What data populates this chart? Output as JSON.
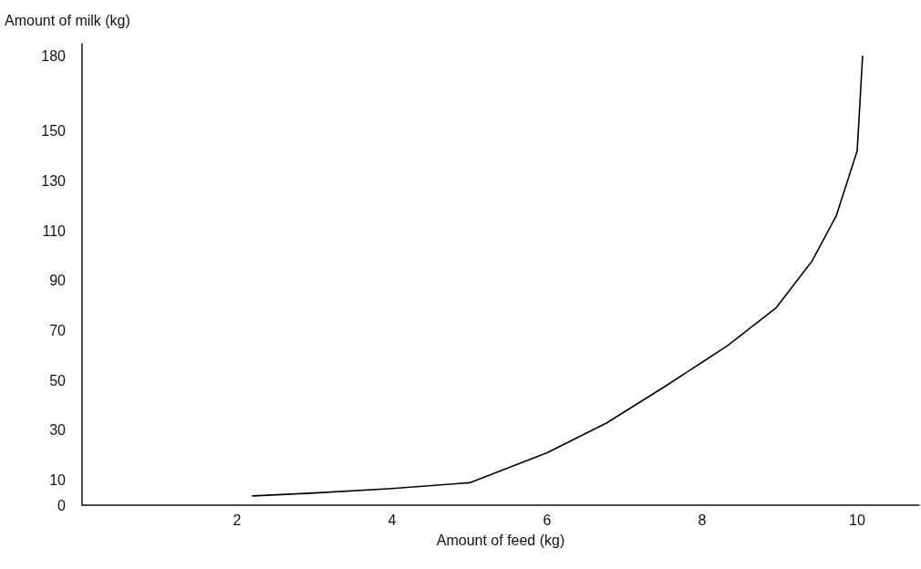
{
  "chart_data": {
    "type": "line",
    "xlabel": "Amount of feed (kg)",
    "ylabel": "Amount of milk (kg)",
    "x": [
      2.2,
      3,
      4,
      5,
      6,
      6.77,
      7.54,
      8.33,
      8.95,
      9.42,
      9.73,
      10,
      10.07
    ],
    "series": [
      {
        "color": "#000000",
        "values": [
          3.7,
          4.9,
          6.7,
          9,
          21,
          33,
          48,
          64,
          79,
          98,
          116,
          142,
          180
        ]
      }
    ],
    "xlim": [
      0,
      10.8
    ],
    "xticks": [
      2,
      4,
      6,
      8,
      10
    ],
    "ylim": [
      0,
      185
    ],
    "yticks": [
      0,
      10,
      30,
      50,
      70,
      90,
      110,
      130,
      150,
      180
    ],
    "marker": "none",
    "line_style": "solid"
  }
}
